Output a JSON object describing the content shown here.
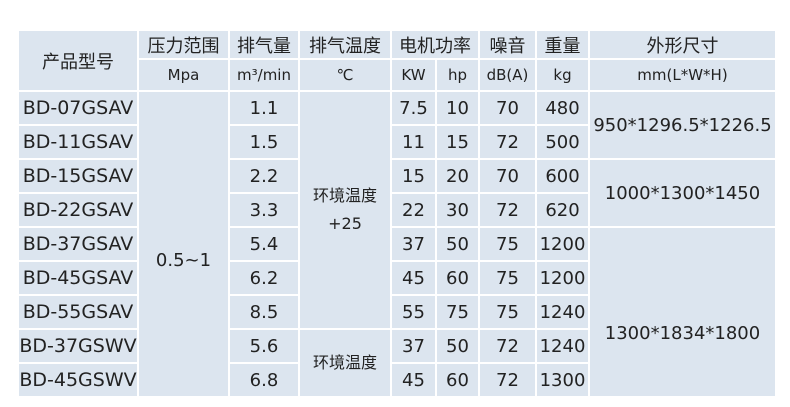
{
  "header": {
    "model": "产品型号",
    "pressure": "压力范围",
    "flow": "排气量",
    "temp": "排气温度",
    "power": "电机功率",
    "noise": "噪音",
    "weight": "重量",
    "dims": "外形尺寸",
    "units": {
      "pressure": "Mpa",
      "flow": "m³/min",
      "temp": "℃",
      "kw": "KW",
      "hp": "hp",
      "noise": "dB(A)",
      "weight": "kg",
      "dims": "mm(L*W*H)"
    }
  },
  "pressure_value": "0.5~1",
  "temp_groups": [
    {
      "line1": "环境温度",
      "line2": "+25"
    },
    {
      "line1": "环境温度"
    }
  ],
  "dims_groups": [
    "950*1296.5*1226.5",
    "1000*1300*1450",
    "1300*1834*1800"
  ],
  "rows": [
    {
      "model": "BD-07GSAV",
      "flow": "1.1",
      "kw": "7.5",
      "hp": "10",
      "noise": "70",
      "weight": "480"
    },
    {
      "model": "BD-11GSAV",
      "flow": "1.5",
      "kw": "11",
      "hp": "15",
      "noise": "72",
      "weight": "500"
    },
    {
      "model": "BD-15GSAV",
      "flow": "2.2",
      "kw": "15",
      "hp": "20",
      "noise": "70",
      "weight": "600"
    },
    {
      "model": "BD-22GSAV",
      "flow": "3.3",
      "kw": "22",
      "hp": "30",
      "noise": "72",
      "weight": "620"
    },
    {
      "model": "BD-37GSAV",
      "flow": "5.4",
      "kw": "37",
      "hp": "50",
      "noise": "75",
      "weight": "1200"
    },
    {
      "model": "BD-45GSAV",
      "flow": "6.2",
      "kw": "45",
      "hp": "60",
      "noise": "75",
      "weight": "1200"
    },
    {
      "model": "BD-55GSAV",
      "flow": "8.5",
      "kw": "55",
      "hp": "75",
      "noise": "75",
      "weight": "1240"
    },
    {
      "model": "BD-37GSWV",
      "flow": "5.6",
      "kw": "37",
      "hp": "50",
      "noise": "72",
      "weight": "1240"
    },
    {
      "model": "BD-45GSWV",
      "flow": "6.8",
      "kw": "45",
      "hp": "60",
      "noise": "72",
      "weight": "1300"
    }
  ]
}
